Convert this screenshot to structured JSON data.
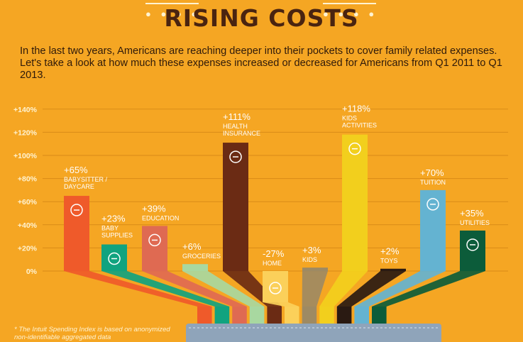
{
  "header": {
    "title": "RISING COSTS",
    "intro": "In the last two years, Americans are reaching deeper into their pockets to cover family related expenses. Let's take a look at how much these expenses increased or decreased for Americans from Q1 2011 to Q1 2013."
  },
  "footnote": "* The Intuit Spending Index is based on anonymized non-identifiable aggregated data",
  "colors": {
    "background": "#f5a623",
    "title": "#4a2410",
    "gridline": "#d98b17",
    "label": "#ffffff"
  },
  "chart_data": {
    "type": "bar",
    "title": "",
    "xlabel": "",
    "ylabel": "",
    "ylim": [
      -30,
      140
    ],
    "yticks": [
      0,
      20,
      40,
      60,
      80,
      100,
      120,
      140
    ],
    "ytick_labels": [
      "0%",
      "+20%",
      "+40%",
      "+60%",
      "+80%",
      "+100%",
      "+120%",
      "+140%"
    ],
    "grid": true,
    "categories": [
      "BABYSITTER / DAYCARE",
      "BABY SUPPLIES",
      "EDUCATION",
      "GROCERIES",
      "HEALTH INSURANCE",
      "HOME",
      "KIDS",
      "KIDS ACTIVITIES",
      "TOYS",
      "TUITION",
      "UTILITIES"
    ],
    "values": [
      65,
      23,
      39,
      6,
      111,
      -27,
      3,
      118,
      2,
      70,
      35
    ],
    "value_labels": [
      "+65%",
      "+23%",
      "+39%",
      "+6%",
      "+111%",
      "-27%",
      "+3%",
      "+118%",
      "+2%",
      "+70%",
      "+35%"
    ],
    "bar_colors": [
      "#ef5a2a",
      "#11a37f",
      "#df6a52",
      "#a8d8a0",
      "#6b2b14",
      "#fbd05a",
      "#9e8a63",
      "#f2cf1d",
      "#2a1a12",
      "#64b3d1",
      "#0c5c3a"
    ],
    "icons": [
      "baby-face-icon",
      "baby-bottle-icon",
      "pencil-ruler-icon",
      "grocery-bag-icon",
      "medical-cross-icon",
      "house-icon",
      "kid-face-icon",
      "sneaker-icon",
      "bicycle-icon",
      "dollar-icon",
      "tools-icon"
    ]
  }
}
